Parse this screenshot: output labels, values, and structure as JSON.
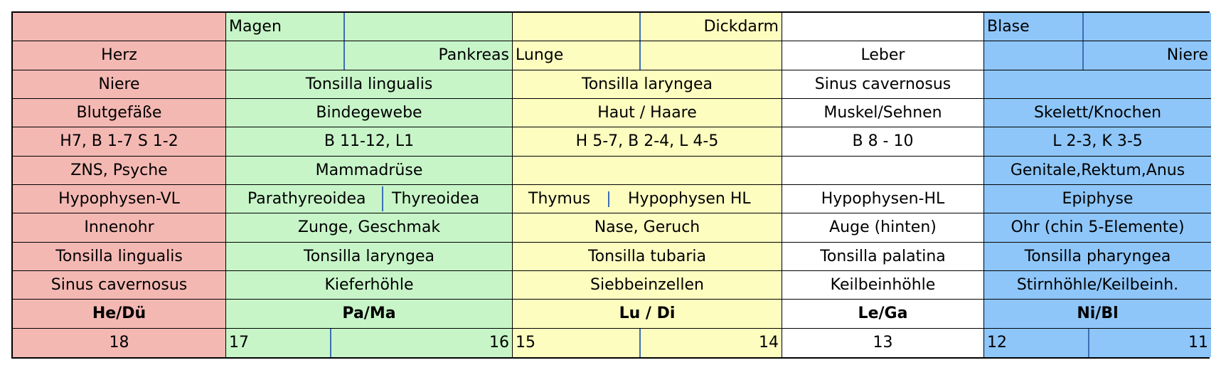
{
  "rows": {
    "organ_top": {
      "pa_ma": "Magen",
      "lu_di": "Dickdarm",
      "ni_bl": "Blase"
    },
    "organ_bottom": {
      "he_du": "Herz",
      "pa_ma": "Pankreas",
      "lu_di": "Lunge",
      "le_ga": "Leber",
      "ni_bl": "Niere"
    },
    "r1": {
      "he_du": "Niere",
      "pa_ma": "Tonsilla lingualis",
      "lu_di": "Tonsilla laryngea",
      "le_ga": "Sinus cavernosus",
      "ni_bl": ""
    },
    "r2": {
      "he_du": "Blutgefäße",
      "pa_ma": "Bindegewebe",
      "lu_di": "Haut / Haare",
      "le_ga": "Muskel/Sehnen",
      "ni_bl": "Skelett/Knochen"
    },
    "r3": {
      "he_du": "H7, B 1-7 S 1-2",
      "pa_ma": "B 11-12, L1",
      "lu_di": "H 5-7, B 2-4, L 4-5",
      "le_ga": "B 8 - 10",
      "ni_bl": "L 2-3, K 3-5"
    },
    "r4": {
      "he_du": "ZNS,  Psyche",
      "pa_ma": "Mammadrüse",
      "lu_di": "",
      "le_ga": "",
      "ni_bl": "Genitale,Rektum,Anus"
    },
    "r5": {
      "he_du": "Hypophysen-VL",
      "pa_ma_left": "Parathyreoidea",
      "pa_ma_right": "Thyreoidea",
      "lu_di_left": "Thymus",
      "lu_di_right": "Hypophysen HL",
      "le_ga": "Hypophysen-HL",
      "ni_bl": "Epiphyse"
    },
    "r6": {
      "he_du": "Innenohr",
      "pa_ma": "Zunge, Geschmak",
      "lu_di": "Nase, Geruch",
      "le_ga": "Auge (hinten)",
      "ni_bl": "Ohr (chin 5-Elemente)"
    },
    "r7": {
      "he_du": "Tonsilla lingualis",
      "pa_ma": "Tonsilla laryngea",
      "lu_di": "Tonsilla tubaria",
      "le_ga": "Tonsilla palatina",
      "ni_bl": "Tonsilla pharyngea"
    },
    "r8": {
      "he_du": "Sinus cavernosus",
      "pa_ma": "Kieferhöhle",
      "lu_di": "Siebbeinzellen",
      "le_ga": "Keilbeinhöhle",
      "ni_bl": "Stirnhöhle/Keilbeinh."
    },
    "group": {
      "he_du": "He/Dü",
      "pa_ma": "Pa/Ma",
      "lu_di": "Lu / Di",
      "le_ga": "Le/Ga",
      "ni_bl": "Ni/Bl"
    },
    "numbers": {
      "he_du": "18",
      "pa_ma_left": "17",
      "pa_ma_right": "16",
      "lu_di_left": "15",
      "lu_di_right": "14",
      "le_ga": "13",
      "ni_bl_left": "12",
      "ni_bl_right": "11"
    }
  },
  "colors": {
    "he_du": "#f4b8b3",
    "pa_ma": "#c7f5c8",
    "lu_di": "#fdfdc0",
    "le_ga": "#ffffff",
    "ni_bl": "#8ec6f9",
    "divider": "#3d6fb4"
  }
}
